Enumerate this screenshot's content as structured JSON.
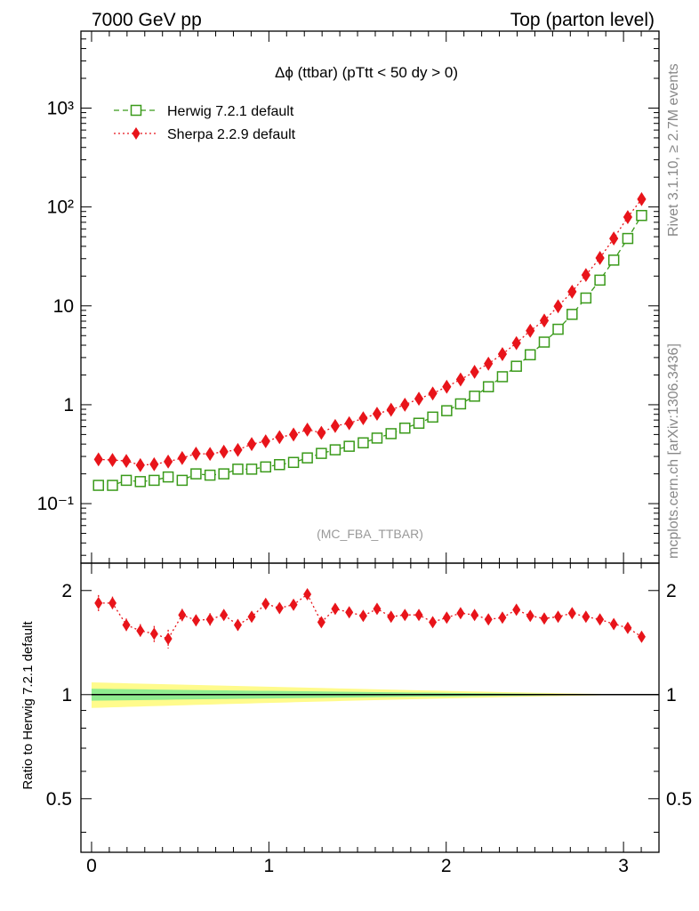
{
  "header": {
    "left": "7000 GeV pp",
    "right": "Top (parton level)"
  },
  "side_labels": {
    "rivet": "Rivet 3.1.10, ≥ 2.7M events",
    "mcplots": "mcplots.cern.ch [arXiv:1306.3436]"
  },
  "chart_data": [
    {
      "type": "line",
      "title": "Δϕ (ttbar) (pTtt < 50 dy > 0)",
      "analysis_label": "(MC_FBA_TTBAR)",
      "yscale": "log",
      "xlim": [
        -0.06,
        3.2
      ],
      "ylim": [
        0.025,
        6000
      ],
      "y_tick_labels": [
        "10⁻¹",
        "1",
        "10",
        "10²",
        "10³"
      ],
      "y_tick_values": [
        0.1,
        1,
        10,
        100,
        1000
      ],
      "legend_position": "top-left",
      "x": [
        0.039,
        0.118,
        0.196,
        0.275,
        0.353,
        0.432,
        0.511,
        0.589,
        0.668,
        0.746,
        0.825,
        0.903,
        0.982,
        1.06,
        1.139,
        1.217,
        1.296,
        1.374,
        1.453,
        1.532,
        1.61,
        1.689,
        1.767,
        1.846,
        1.924,
        2.003,
        2.081,
        2.16,
        2.238,
        2.317,
        2.396,
        2.474,
        2.553,
        2.631,
        2.71,
        2.788,
        2.867,
        2.945,
        3.024,
        3.102
      ],
      "series": [
        {
          "name": "Herwig 7.2.1 default",
          "color": "#3a9a1a",
          "marker": "open-square",
          "linestyle": "dashed",
          "values": [
            0.153,
            0.153,
            0.172,
            0.167,
            0.172,
            0.186,
            0.172,
            0.2,
            0.194,
            0.2,
            0.223,
            0.223,
            0.235,
            0.248,
            0.261,
            0.29,
            0.322,
            0.35,
            0.38,
            0.412,
            0.46,
            0.51,
            0.58,
            0.65,
            0.75,
            0.87,
            1.02,
            1.22,
            1.52,
            1.92,
            2.45,
            3.2,
            4.3,
            5.8,
            8.2,
            12.0,
            18.2,
            29.0,
            48.0,
            82.0
          ]
        },
        {
          "name": "Sherpa 2.2.9 default",
          "color": "#e8141a",
          "marker": "filled-diamond",
          "linestyle": "dotted",
          "values": [
            0.28,
            0.276,
            0.27,
            0.245,
            0.25,
            0.266,
            0.289,
            0.32,
            0.318,
            0.335,
            0.349,
            0.4,
            0.427,
            0.47,
            0.5,
            0.56,
            0.52,
            0.61,
            0.65,
            0.73,
            0.81,
            0.89,
            1.0,
            1.15,
            1.3,
            1.52,
            1.8,
            2.15,
            2.6,
            3.25,
            4.2,
            5.6,
            7.1,
            9.9,
            13.9,
            20.5,
            30.5,
            48.0,
            79.0,
            120.0
          ]
        }
      ]
    },
    {
      "type": "line",
      "ylabel": "Ratio to Herwig 7.2.1 default",
      "xlabel": "",
      "xlim": [
        -0.06,
        3.2
      ],
      "ylim": [
        0.35,
        2.4
      ],
      "yscale": "log",
      "x_tick_labels": [
        "0",
        "1",
        "2",
        "3"
      ],
      "x_tick_values": [
        0,
        1,
        2,
        3
      ],
      "y_tick_labels": [
        "0.5",
        "1",
        "2"
      ],
      "y_tick_values": [
        0.5,
        1,
        2
      ],
      "reference_band": {
        "inner_color": "#8fec8f",
        "outer_color": "#fffb8c",
        "inner_halfwidth_at_x0": 0.04,
        "outer_halfwidth_at_x0": 0.085,
        "note": "bands shrink to zero toward x=3.1"
      },
      "series": [
        {
          "name": "Sherpa 2.2.9 default",
          "color": "#e8141a",
          "values": [
            1.84,
            1.84,
            1.59,
            1.53,
            1.5,
            1.45,
            1.7,
            1.64,
            1.65,
            1.7,
            1.59,
            1.68,
            1.83,
            1.78,
            1.82,
            1.95,
            1.62,
            1.77,
            1.73,
            1.69,
            1.77,
            1.68,
            1.7,
            1.7,
            1.62,
            1.67,
            1.72,
            1.7,
            1.65,
            1.67,
            1.76,
            1.69,
            1.66,
            1.68,
            1.72,
            1.68,
            1.65,
            1.6,
            1.56,
            1.47
          ],
          "errors": [
            0.1,
            0.08,
            0.07,
            0.07,
            0.08,
            0.09,
            0.07,
            0.06,
            0.07,
            0.06,
            0.06,
            0.05,
            0.05,
            0.05,
            0.05,
            0.05,
            0.04,
            0.04,
            0.04,
            0.03,
            0.03,
            0.03,
            0.03,
            0.02,
            0.02,
            0.02,
            0.02,
            0.02,
            0.02,
            0.02,
            0.01,
            0.01,
            0.01,
            0.01,
            0.01,
            0.01,
            0.01,
            0.01,
            0.01,
            0.01
          ]
        }
      ]
    }
  ]
}
